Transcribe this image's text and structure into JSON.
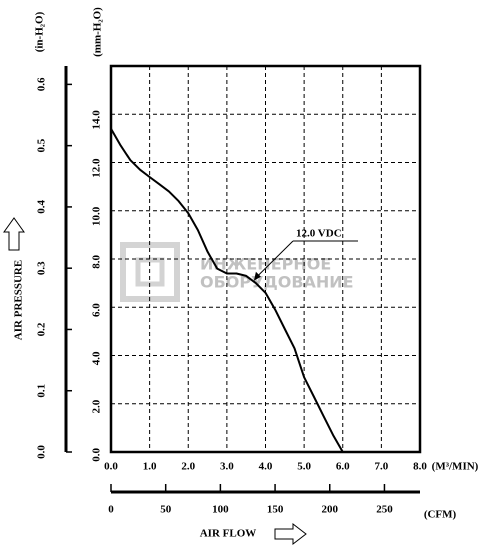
{
  "chart_data": {
    "type": "line",
    "x_label": "AIR FLOW",
    "y_label": "AIR PRESSURE",
    "x_unit": "(M³/MIN)",
    "x2_unit": "(CFM)",
    "y_unit": "(mm-H₂O)",
    "y2_unit": "(in-H₂O)",
    "watermark": [
      "ИНЖЕНЕРНОЕ",
      "ОБОРУДОВАНИЕ"
    ],
    "x": [
      0,
      0.25,
      0.5,
      0.75,
      1.0,
      1.25,
      1.5,
      1.75,
      2.0,
      2.25,
      2.5,
      2.75,
      3.0,
      3.25,
      3.5,
      3.75,
      4.0,
      4.25,
      4.5,
      4.75,
      5.0,
      5.25,
      5.5,
      5.75,
      6.0
    ],
    "series": [
      {
        "name": "12.0 VDC",
        "color": "#000000",
        "axis": "y",
        "values": [
          13.4,
          12.7,
          12.1,
          11.7,
          11.4,
          11.1,
          10.8,
          10.4,
          9.9,
          9.2,
          8.3,
          7.6,
          7.4,
          7.4,
          7.3,
          7.0,
          6.6,
          5.9,
          5.1,
          4.3,
          3.1,
          2.3,
          1.5,
          0.7,
          0
        ]
      }
    ],
    "xlim": [
      0,
      8
    ],
    "xticks": [
      {
        "value": 0,
        "label": "0.0"
      },
      {
        "value": 1,
        "label": "1.0"
      },
      {
        "value": 2,
        "label": "2.0"
      },
      {
        "value": 3,
        "label": "3.0"
      },
      {
        "value": 4,
        "label": "4.0"
      },
      {
        "value": 5,
        "label": "5.0"
      },
      {
        "value": 6,
        "label": "6.0"
      },
      {
        "value": 7,
        "label": "7.0"
      },
      {
        "value": 8,
        "label": "8.0"
      }
    ],
    "x2lim": [
      0,
      282.5
    ],
    "x2ticks": [
      0,
      50,
      100,
      150,
      200,
      250
    ],
    "ylim": [
      0,
      16
    ],
    "yticks": [
      {
        "value": 0,
        "label": "0.0"
      },
      {
        "value": 2,
        "label": "2.0"
      },
      {
        "value": 4,
        "label": "4.0"
      },
      {
        "value": 6,
        "label": "6.0"
      },
      {
        "value": 8,
        "label": "8.0"
      },
      {
        "value": 10,
        "label": "10.0"
      },
      {
        "value": 12,
        "label": "12.0"
      },
      {
        "value": 14,
        "label": "14.0"
      }
    ],
    "y2lim": [
      0,
      0.63
    ],
    "y2ticks": [
      {
        "value": 0,
        "label": "0.0"
      },
      0.1,
      0.2,
      0.3,
      0.4,
      0.5,
      0.6
    ],
    "grid": true
  }
}
